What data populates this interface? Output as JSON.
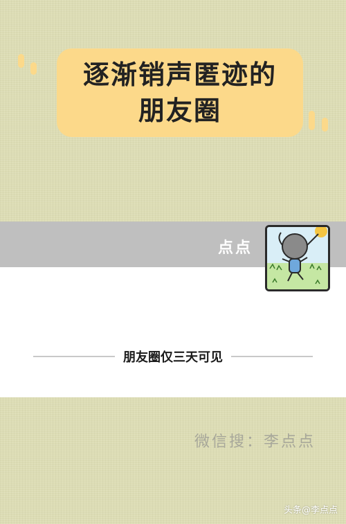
{
  "title": {
    "line1": "逐渐销声匿迹的",
    "line2": "朋友圈"
  },
  "profile": {
    "name": "点点"
  },
  "moments": {
    "notice": "朋友圈仅三天可见"
  },
  "footer": {
    "wechat_search": "微信搜：李点点",
    "watermark": "头条@李点点"
  }
}
